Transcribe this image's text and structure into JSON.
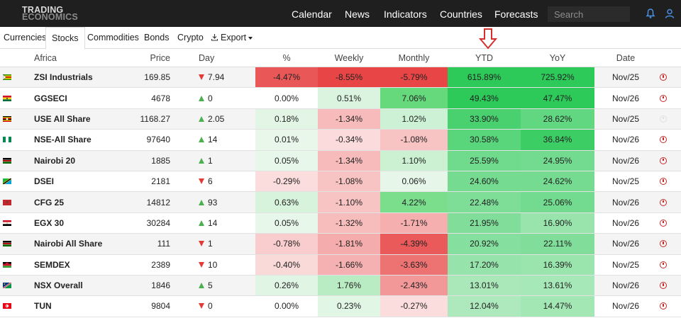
{
  "brand": {
    "line1": "TRADING",
    "line2": "ECONOMICS"
  },
  "nav": [
    "Calendar",
    "News",
    "Indicators",
    "Countries",
    "Forecasts"
  ],
  "search": {
    "placeholder": "Search"
  },
  "tabs": [
    "Currencies",
    "Stocks",
    "Commodities",
    "Bonds",
    "Crypto",
    "Export"
  ],
  "active_tab": "Stocks",
  "columns": {
    "name": "Africa",
    "price": "Price",
    "day": "Day",
    "pct": "%",
    "weekly": "Weekly",
    "monthly": "Monthly",
    "ytd": "YTD",
    "yoy": "YoY",
    "date": "Date"
  },
  "rows": [
    {
      "flag": "zimbabwe",
      "name": "ZSI Industrials",
      "price": "169.85",
      "day_dir": "down",
      "day": "7.94",
      "pct": "-4.47%",
      "weekly": "-8.55%",
      "monthly": "-5.79%",
      "ytd": "615.89%",
      "yoy": "725.92%",
      "date": "Nov/25",
      "alarm": true
    },
    {
      "flag": "ghana",
      "name": "GGSECI",
      "price": "4678",
      "day_dir": "up",
      "day": "0",
      "pct": "0.00%",
      "weekly": "0.51%",
      "monthly": "7.06%",
      "ytd": "49.43%",
      "yoy": "47.47%",
      "date": "Nov/26",
      "alarm": true
    },
    {
      "flag": "uganda",
      "name": "USE All Share",
      "price": "1168.27",
      "day_dir": "up",
      "day": "2.05",
      "pct": "0.18%",
      "weekly": "-1.34%",
      "monthly": "1.02%",
      "ytd": "33.90%",
      "yoy": "28.62%",
      "date": "Nov/25",
      "alarm": false
    },
    {
      "flag": "nigeria",
      "name": "NSE-All Share",
      "price": "97640",
      "day_dir": "up",
      "day": "14",
      "pct": "0.01%",
      "weekly": "-0.34%",
      "monthly": "-1.08%",
      "ytd": "30.58%",
      "yoy": "36.84%",
      "date": "Nov/26",
      "alarm": true
    },
    {
      "flag": "kenya",
      "name": "Nairobi 20",
      "price": "1885",
      "day_dir": "up",
      "day": "1",
      "pct": "0.05%",
      "weekly": "-1.34%",
      "monthly": "1.10%",
      "ytd": "25.59%",
      "yoy": "24.95%",
      "date": "Nov/26",
      "alarm": true
    },
    {
      "flag": "tanzania",
      "name": "DSEI",
      "price": "2181",
      "day_dir": "down",
      "day": "6",
      "pct": "-0.29%",
      "weekly": "-1.08%",
      "monthly": "0.06%",
      "ytd": "24.60%",
      "yoy": "24.62%",
      "date": "Nov/25",
      "alarm": true
    },
    {
      "flag": "morocco",
      "name": "CFG 25",
      "price": "14812",
      "day_dir": "up",
      "day": "93",
      "pct": "0.63%",
      "weekly": "-1.10%",
      "monthly": "4.22%",
      "ytd": "22.48%",
      "yoy": "25.06%",
      "date": "Nov/26",
      "alarm": true
    },
    {
      "flag": "egypt",
      "name": "EGX 30",
      "price": "30284",
      "day_dir": "up",
      "day": "14",
      "pct": "0.05%",
      "weekly": "-1.32%",
      "monthly": "-1.71%",
      "ytd": "21.95%",
      "yoy": "16.90%",
      "date": "Nov/26",
      "alarm": true
    },
    {
      "flag": "kenya",
      "name": "Nairobi All Share",
      "price": "111",
      "day_dir": "down",
      "day": "1",
      "pct": "-0.78%",
      "weekly": "-1.81%",
      "monthly": "-4.39%",
      "ytd": "20.92%",
      "yoy": "22.11%",
      "date": "Nov/26",
      "alarm": true
    },
    {
      "flag": "malawi",
      "name": "SEMDEX",
      "price": "2389",
      "day_dir": "down",
      "day": "10",
      "pct": "-0.40%",
      "weekly": "-1.66%",
      "monthly": "-3.63%",
      "ytd": "17.20%",
      "yoy": "16.39%",
      "date": "Nov/25",
      "alarm": true
    },
    {
      "flag": "namibia",
      "name": "NSX Overall",
      "price": "1846",
      "day_dir": "up",
      "day": "5",
      "pct": "0.26%",
      "weekly": "1.76%",
      "monthly": "-2.43%",
      "ytd": "13.01%",
      "yoy": "13.61%",
      "date": "Nov/26",
      "alarm": true
    },
    {
      "flag": "tunisia",
      "name": "TUN",
      "price": "9804",
      "day_dir": "down",
      "day": "0",
      "pct": "0.00%",
      "weekly": "0.23%",
      "monthly": "-0.27%",
      "ytd": "12.04%",
      "yoy": "14.47%",
      "date": "Nov/26",
      "alarm": true
    }
  ],
  "colors": {
    "nav_bg": "#1f1f1f",
    "up": "#4caf50",
    "down": "#e53935",
    "annotation": "#d32f2f"
  }
}
